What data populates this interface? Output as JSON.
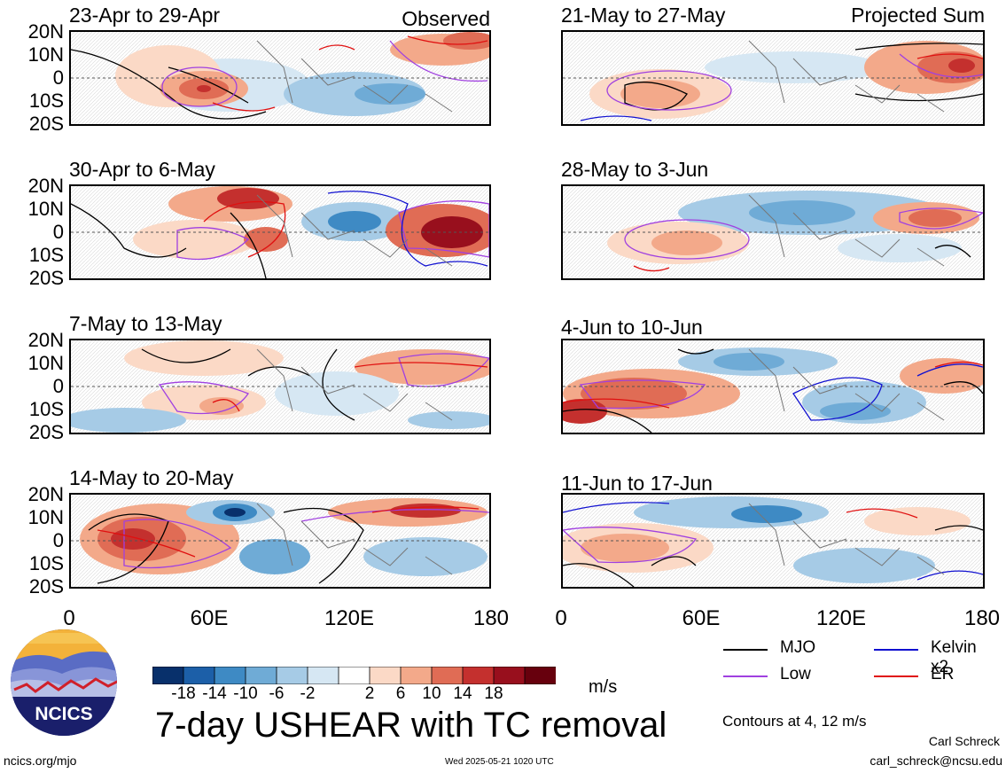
{
  "left_column_label": "Observed",
  "right_column_label": "Projected Sum",
  "panels_left": [
    {
      "title": "23-Apr to 29-Apr"
    },
    {
      "title": "30-Apr to 6-May"
    },
    {
      "title": "7-May to 13-May"
    },
    {
      "title": "14-May to 20-May"
    }
  ],
  "panels_right": [
    {
      "title": "21-May to 27-May"
    },
    {
      "title": "28-May to 3-Jun"
    },
    {
      "title": "4-Jun to 10-Jun"
    },
    {
      "title": "11-Jun to 17-Jun"
    }
  ],
  "lat_labels": [
    "20N",
    "10N",
    "0",
    "10S",
    "20S"
  ],
  "lon_labels": [
    "0",
    "60E",
    "120E",
    "180"
  ],
  "colorbar": {
    "labels": [
      "-18",
      "-14",
      "-10",
      "-6",
      "-2",
      "2",
      "6",
      "10",
      "14",
      "18"
    ],
    "colors": [
      "#08306b",
      "#1c5fa8",
      "#3e8ac4",
      "#6fabd6",
      "#a6cbe6",
      "#d6e7f3",
      "#ffffff",
      "#fbd9c6",
      "#f3a98a",
      "#e06c55",
      "#c4302e",
      "#980f1d",
      "#67000d"
    ],
    "units": "m/s"
  },
  "legend": {
    "items": [
      {
        "label": "MJO",
        "color": "#000000"
      },
      {
        "label": "Kelvin x2",
        "color": "#1010d0"
      },
      {
        "label": "Low",
        "color": "#a040e0"
      },
      {
        "label": "ER",
        "color": "#e01010"
      }
    ],
    "contours_note": "Contours at 4, 12 m/s"
  },
  "main_title": "7-day USHEAR with TC removal",
  "logo_text": "NCICS",
  "footer": {
    "url": "ncics.org/mjo",
    "timestamp": "Wed 2025-05-21 1020 UTC",
    "author": "Carl Schreck",
    "email": "carl_schreck@ncsu.edu"
  }
}
